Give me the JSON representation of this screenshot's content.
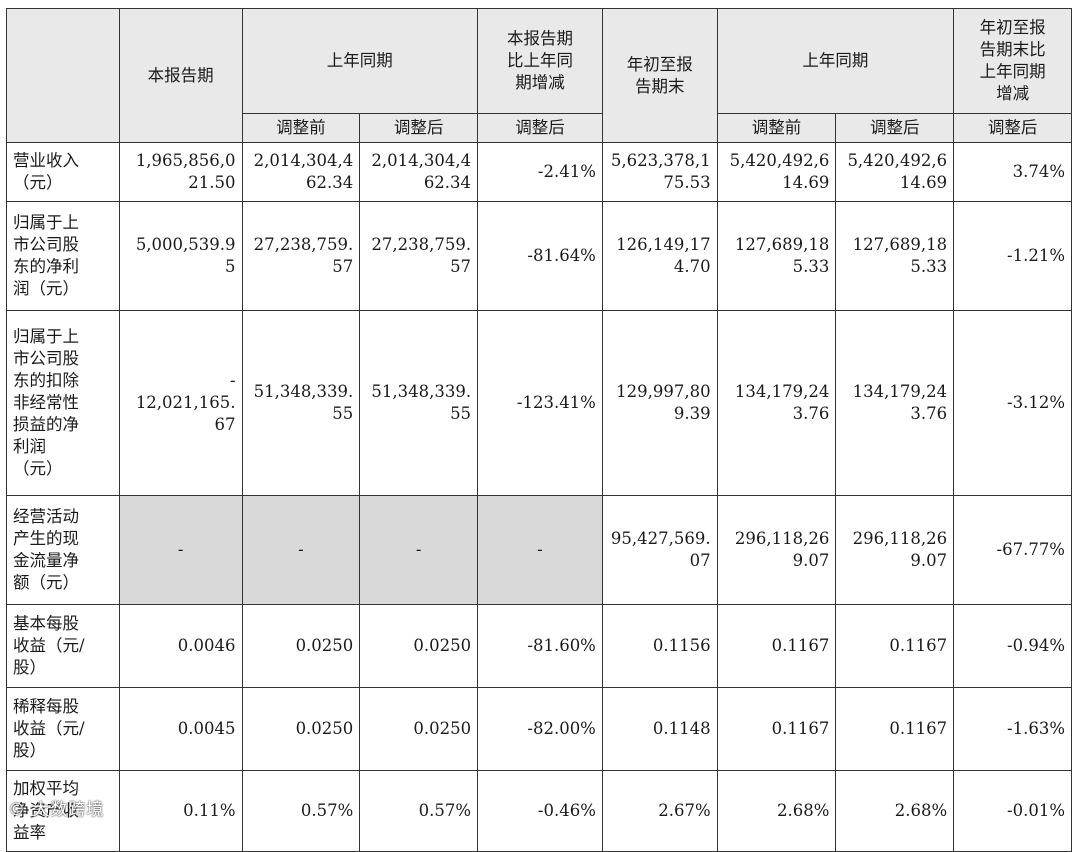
{
  "headers": {
    "current_period": "本报告期",
    "prior_period": "上年同期",
    "yoy_change": [
      "本报告期",
      "比上年同",
      "期增减"
    ],
    "ytd": [
      "年初至报",
      "告期末"
    ],
    "prior_period_ytd": "上年同期",
    "ytd_change": [
      "年初至报",
      "告期末比",
      "上年同期",
      "增减"
    ],
    "before_adjust": "调整前",
    "after_adjust": "调整后"
  },
  "rows": [
    {
      "label": [
        "营业收入",
        "（元）"
      ],
      "cells": [
        [
          "1,965,856,0",
          "21.50"
        ],
        [
          "2,014,304,4",
          "62.34"
        ],
        [
          "2,014,304,4",
          "62.34"
        ],
        [
          "-2.41%"
        ],
        [
          "5,623,378,1",
          "75.53"
        ],
        [
          "5,420,492,6",
          "14.69"
        ],
        [
          "5,420,492,6",
          "14.69"
        ],
        [
          "3.74%"
        ]
      ]
    },
    {
      "label": [
        "归属于上",
        "市公司股",
        "东的净利",
        "润（元）"
      ],
      "cells": [
        [
          "5,000,539.9",
          "5"
        ],
        [
          "27,238,759.",
          "57"
        ],
        [
          "27,238,759.",
          "57"
        ],
        [
          "-81.64%"
        ],
        [
          "126,149,17",
          "4.70"
        ],
        [
          "127,689,18",
          "5.33"
        ],
        [
          "127,689,18",
          "5.33"
        ],
        [
          "-1.21%"
        ]
      ]
    },
    {
      "label": [
        "归属于上",
        "市公司股",
        "东的扣除",
        "非经常性",
        "损益的净",
        "利润",
        "（元）"
      ],
      "cells": [
        [
          "-",
          "12,021,165.",
          "67"
        ],
        [
          "51,348,339.",
          "55"
        ],
        [
          "51,348,339.",
          "55"
        ],
        [
          "-123.41%"
        ],
        [
          "129,997,80",
          "9.39"
        ],
        [
          "134,179,24",
          "3.76"
        ],
        [
          "134,179,24",
          "3.76"
        ],
        [
          "-3.12%"
        ]
      ]
    },
    {
      "label": [
        "经营活动",
        "产生的现",
        "金流量净",
        "额（元）"
      ],
      "cells": [
        [
          "-"
        ],
        [
          "-"
        ],
        [
          "-"
        ],
        [
          "-"
        ],
        [
          "95,427,569.",
          "07"
        ],
        [
          "296,118,26",
          "9.07"
        ],
        [
          "296,118,26",
          "9.07"
        ],
        [
          "-67.77%"
        ]
      ]
    },
    {
      "label": [
        "基本每股",
        "收益（元/",
        "股）"
      ],
      "cells": [
        [
          "0.0046"
        ],
        [
          "0.0250"
        ],
        [
          "0.0250"
        ],
        [
          "-81.60%"
        ],
        [
          "0.1156"
        ],
        [
          "0.1167"
        ],
        [
          "0.1167"
        ],
        [
          "-0.94%"
        ]
      ]
    },
    {
      "label": [
        "稀释每股",
        "收益（元/",
        "股）"
      ],
      "cells": [
        [
          "0.0045"
        ],
        [
          "0.0250"
        ],
        [
          "0.0250"
        ],
        [
          "-82.00%"
        ],
        [
          "0.1148"
        ],
        [
          "0.1167"
        ],
        [
          "0.1167"
        ],
        [
          "-1.63%"
        ]
      ]
    },
    {
      "label": [
        "加权平均",
        "净资产收",
        "益率"
      ],
      "cells": [
        [
          "0.11%"
        ],
        [
          "0.57%"
        ],
        [
          "0.57%"
        ],
        [
          "-0.46%"
        ],
        [
          "2.67%"
        ],
        [
          "2.68%"
        ],
        [
          "2.68%"
        ],
        [
          "-0.01%"
        ]
      ]
    }
  ],
  "watermark": "©  大数跨境"
}
